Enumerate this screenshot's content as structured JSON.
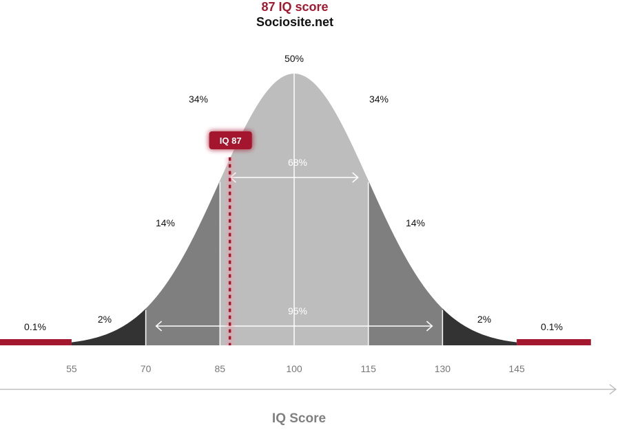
{
  "title": "87 IQ score",
  "subtitle": "Sociosite.net",
  "chart_data": {
    "type": "area",
    "distribution": "normal",
    "mean": 100,
    "sd": 15,
    "x_ticks": [
      55,
      70,
      85,
      100,
      115,
      130,
      145
    ],
    "xlabel": "IQ Score",
    "regions": [
      {
        "range": [
          40,
          55
        ],
        "label": "0.1%"
      },
      {
        "range": [
          55,
          70
        ],
        "label": "2%"
      },
      {
        "range": [
          70,
          85
        ],
        "label": "14%"
      },
      {
        "range": [
          85,
          100
        ],
        "label": "34%"
      },
      {
        "range": [
          100,
          115
        ],
        "label": "34%"
      },
      {
        "range": [
          115,
          130
        ],
        "label": "14%"
      },
      {
        "range": [
          130,
          145
        ],
        "label": "2%"
      },
      {
        "range": [
          145,
          160
        ],
        "label": "0.1%"
      }
    ],
    "center_label": "50%",
    "spans": [
      {
        "range": [
          85,
          115
        ],
        "label": "68%"
      },
      {
        "range": [
          70,
          130
        ],
        "label": "95%"
      }
    ],
    "marker": {
      "value": 87,
      "label": "IQ 87"
    },
    "colors": {
      "accent": "#a3172f",
      "tails": "#333333",
      "outer": "#7f7f7f",
      "inner": "#bdbdbd"
    }
  }
}
